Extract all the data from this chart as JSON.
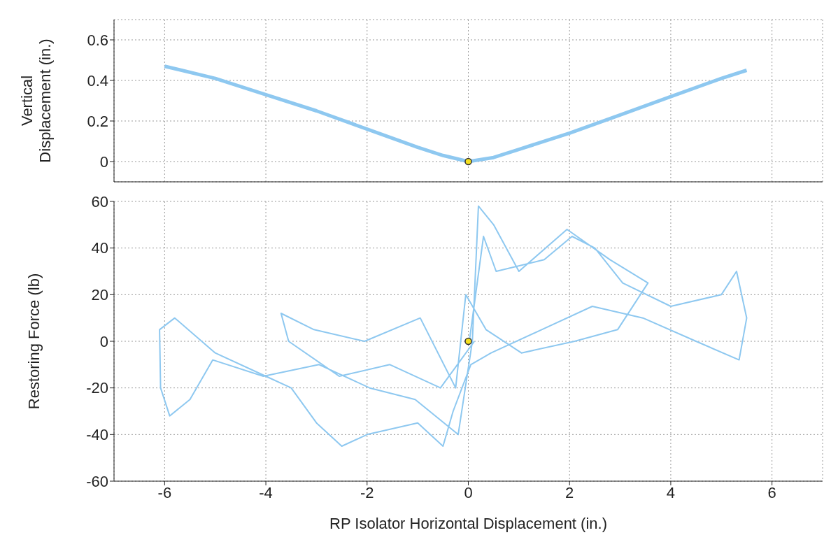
{
  "chart_data": [
    {
      "type": "line",
      "ylabel": "Vertical Displacement (in.)",
      "xlim": [
        -7,
        7
      ],
      "xticks": [
        -6,
        -4,
        -2,
        0,
        2,
        4,
        6
      ],
      "ylim": [
        -0.1,
        0.7
      ],
      "yticks": [
        0,
        0.2,
        0.4,
        0.6
      ],
      "grid": true,
      "tick_labels": "y",
      "series": [
        {
          "type": "line",
          "color": "#8ec8f0",
          "marker": "none",
          "x": [
            -6,
            -5,
            -4,
            -3,
            -2,
            -1,
            -0.5,
            0,
            0.5,
            1,
            2,
            3,
            4,
            5,
            5.5
          ],
          "values": [
            0.47,
            0.41,
            0.33,
            0.25,
            0.16,
            0.07,
            0.03,
            0,
            0.02,
            0.06,
            0.14,
            0.23,
            0.32,
            0.41,
            0.45
          ]
        },
        {
          "type": "scatter",
          "color": "#f5e020",
          "marker": "circle",
          "x": [
            0
          ],
          "values": [
            0
          ]
        }
      ]
    },
    {
      "type": "line",
      "xlabel": "RP Isolator Horizontal Displacement (in.)",
      "ylabel": "Restoring Force (lb)",
      "xlim": [
        -7,
        7
      ],
      "xticks": [
        -6,
        -4,
        -2,
        0,
        2,
        4,
        6
      ],
      "ylim": [
        -60,
        60
      ],
      "yticks": [
        -60,
        -40,
        -20,
        0,
        20,
        40,
        60
      ],
      "grid": true,
      "series": [
        {
          "type": "line",
          "color": "#8ec8f0",
          "marker": "none",
          "x": [
            0.02,
            0.3,
            0.55,
            1.5,
            2.05,
            2.5,
            3.05,
            4,
            5,
            5.3,
            5.5,
            5.35,
            4.5,
            3.45,
            2.45,
            1.45,
            0.45,
            0.05,
            -0.3,
            -0.5,
            -1,
            -2,
            -2.5,
            -3,
            -3.5,
            -4,
            -5,
            -5.8,
            -6.1,
            -6.08,
            -5.9,
            -5.5,
            -5.05,
            -4.05,
            -2.95,
            -1.95,
            -1.05,
            -0.2,
            0.08,
            0.2,
            0.5,
            1,
            1.95,
            2.8,
            3.55,
            2.95,
            2.1,
            1.05,
            0.35,
            -0.05,
            -0.25,
            -0.95,
            -2.05,
            -3.05,
            -3.7,
            -3.55,
            -2.55,
            -1.55,
            -0.55,
            0.12
          ],
          "values": [
            0,
            45,
            30,
            35,
            45,
            40,
            25,
            15,
            20,
            30,
            10,
            -8,
            0,
            10,
            15,
            5,
            -5,
            -10,
            -30,
            -45,
            -35,
            -40,
            -45,
            -35,
            -20,
            -15,
            -5,
            10,
            5,
            -20,
            -32,
            -25,
            -8,
            -15,
            -10,
            -20,
            -25,
            -40,
            0,
            58,
            50,
            30,
            48,
            35,
            25,
            5,
            0,
            -5,
            5,
            20,
            -20,
            10,
            0,
            5,
            12,
            0,
            -15,
            -10,
            -20,
            0
          ]
        },
        {
          "type": "scatter",
          "color": "#f5e020",
          "marker": "circle",
          "x": [
            0
          ],
          "values": [
            0
          ]
        }
      ]
    }
  ]
}
